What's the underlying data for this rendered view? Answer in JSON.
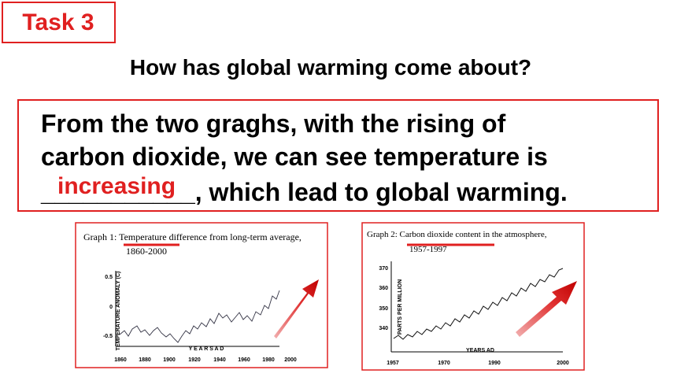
{
  "task": "Task 3",
  "question": "How has global warming come about?",
  "answer": {
    "lines": [
      "From the two graghs, with the rising of",
      "carbon dioxide, we can see temperature is",
      "___________, which lead to global warming."
    ],
    "blank_answer": "increasing"
  },
  "graphs": [
    {
      "title": "Graph 1:  Temperature difference from long-term average,",
      "subtitle": "1860-2000",
      "y_label": "TEMPERATURE ANOMALY (C)",
      "x_label": "Y E A R S   A D",
      "yticks": [
        0.5,
        0,
        -0.5
      ],
      "xticks": [
        1860,
        1880,
        1900,
        1920,
        1940,
        1960,
        1980,
        2000
      ]
    },
    {
      "title": "Graph 2:  Carbon dioxide content in the atmosphere,",
      "subtitle": "1957-1997",
      "y_label": "PARTS PER MILLION",
      "x_label": "YEARS AD",
      "yticks": [
        370,
        360,
        350,
        340
      ],
      "xticks": [
        1957,
        1970,
        1990,
        2000
      ]
    }
  ]
}
